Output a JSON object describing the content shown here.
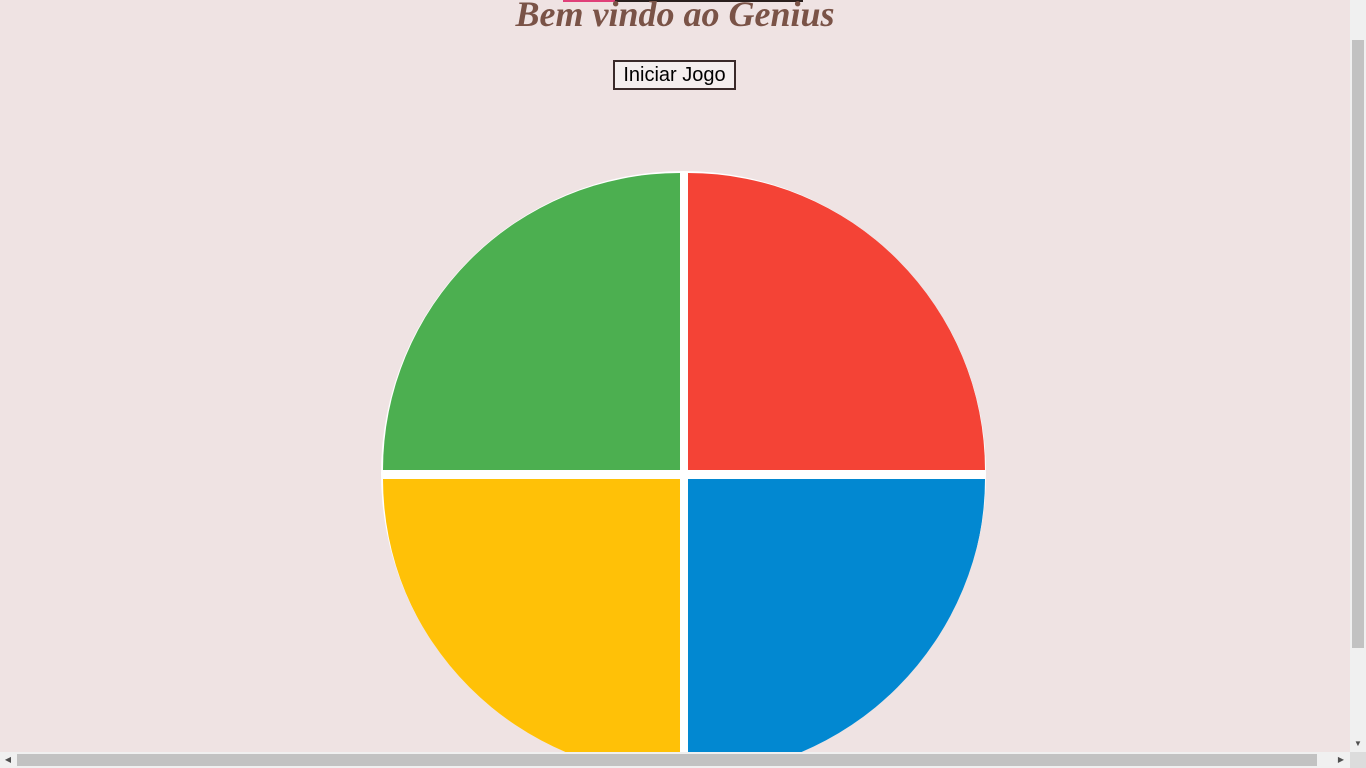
{
  "header": {
    "title": "Bem vindo ao Genius"
  },
  "controls": {
    "start_label": "Iniciar Jogo"
  },
  "board": {
    "colors": {
      "green": "#4caf50",
      "red": "#f44336",
      "yellow": "#ffc107",
      "blue": "#0288d1"
    }
  },
  "scrollbars": {
    "up_arrow_icon": "arrow-up-icon",
    "down_arrow_icon": "arrow-down-icon",
    "left_arrow_icon": "arrow-left-icon",
    "right_arrow_icon": "arrow-right-icon"
  }
}
